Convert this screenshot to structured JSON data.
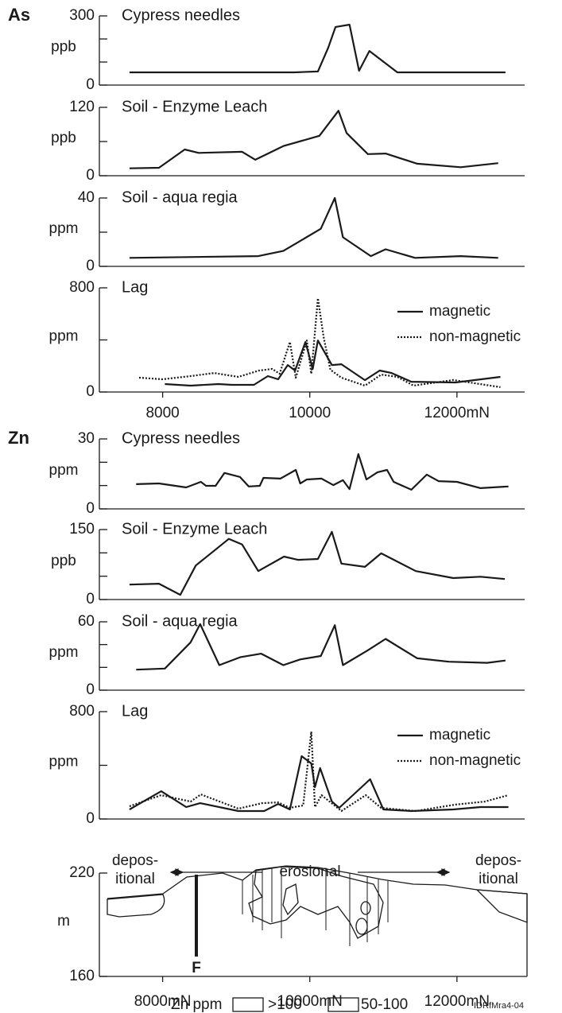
{
  "chart_data": [
    {
      "type": "line",
      "panel_label": "As",
      "title": "Cypress needles",
      "ylabel": "ppb",
      "color": "#1a1a1a",
      "xlim": [
        7140,
        12920
      ],
      "ylim": [
        0,
        300
      ],
      "yticks": [
        0,
        300
      ],
      "yminor": [
        100,
        200
      ],
      "x": [
        7550,
        9780,
        10110,
        10250,
        10350,
        10540,
        10670,
        10810,
        11190,
        12660
      ],
      "values": [
        55,
        55,
        59,
        162,
        252,
        262,
        62,
        148,
        55,
        55
      ]
    },
    {
      "type": "line",
      "title": "Soil - Enzyme Leach",
      "ylabel": "ppb",
      "color": "#1a1a1a",
      "xlim": [
        7140,
        12920
      ],
      "ylim": [
        0,
        120
      ],
      "yticks": [
        0,
        120
      ],
      "yminor": [
        60
      ],
      "x": [
        7550,
        7950,
        8300,
        8490,
        9080,
        9260,
        9640,
        10130,
        10390,
        10500,
        10790,
        11030,
        11460,
        12050,
        12560
      ],
      "values": [
        13,
        14,
        46,
        40,
        42,
        28,
        52,
        70,
        114,
        75,
        38,
        39,
        21,
        15,
        22
      ]
    },
    {
      "type": "line",
      "title": "Soil - aqua regia",
      "ylabel": "ppm",
      "color": "#1a1a1a",
      "xlim": [
        7140,
        12920
      ],
      "ylim": [
        0,
        40
      ],
      "yticks": [
        0,
        40
      ],
      "yminor": [
        20
      ],
      "x": [
        7550,
        9300,
        9640,
        10150,
        10340,
        10450,
        10830,
        11030,
        11430,
        12050,
        12560
      ],
      "values": [
        5,
        6,
        9,
        22,
        40,
        17,
        6,
        10,
        5,
        6,
        5
      ]
    },
    {
      "type": "line",
      "title": "Lag",
      "ylabel": "ppm",
      "xlim": [
        7140,
        12920
      ],
      "ylim": [
        0,
        800
      ],
      "yticks": [
        0,
        800
      ],
      "yminor": [
        400
      ],
      "xticks": [
        8000,
        10000,
        {
          "value": 12000,
          "label": "12000mN"
        }
      ],
      "series": [
        {
          "name": "magnetic",
          "color": "#1a1a1a",
          "dash": "solid",
          "x": [
            8030,
            8380,
            8760,
            8940,
            9240,
            9430,
            9570,
            9700,
            9800,
            9940,
            10040,
            10110,
            10300,
            10430,
            10750,
            10950,
            11110,
            11380,
            11980,
            12590
          ],
          "values": [
            61,
            49,
            61,
            55,
            55,
            122,
            98,
            207,
            165,
            384,
            177,
            396,
            207,
            213,
            91,
            165,
            146,
            79,
            73,
            116
          ]
        },
        {
          "name": "non-magnetic",
          "color": "#1a1a1a",
          "dash": "dotted",
          "x": [
            7680,
            8000,
            8380,
            8700,
            9030,
            9310,
            9490,
            9590,
            9730,
            9810,
            9960,
            10020,
            10110,
            10190,
            10280,
            10430,
            10750,
            10970,
            11190,
            11410,
            11950,
            12590
          ],
          "values": [
            110,
            98,
            122,
            146,
            116,
            165,
            177,
            140,
            384,
            110,
            396,
            140,
            720,
            415,
            171,
            110,
            49,
            134,
            116,
            49,
            92,
            37
          ]
        }
      ]
    },
    {
      "type": "line",
      "panel_label": "Zn",
      "title": "Cypress needles",
      "ylabel": "ppm",
      "color": "#1a1a1a",
      "xlim": [
        7140,
        12920
      ],
      "ylim": [
        0,
        30
      ],
      "yticks": [
        0,
        30
      ],
      "yminor": [
        10,
        20
      ],
      "x": [
        7640,
        7950,
        8320,
        8520,
        8590,
        8720,
        8840,
        9050,
        9170,
        9320,
        9370,
        9600,
        9810,
        9870,
        9960,
        10160,
        10320,
        10450,
        10540,
        10660,
        10770,
        10920,
        11050,
        11140,
        11380,
        11590,
        11750,
        12000,
        12320,
        12700
      ],
      "values": [
        10.6,
        10.9,
        9.2,
        11.6,
        9.9,
        9.9,
        15.4,
        13.7,
        9.6,
        9.9,
        13.3,
        13,
        16.7,
        10.9,
        12.6,
        13,
        10.2,
        12.3,
        8.5,
        23.5,
        12.6,
        15.7,
        16.7,
        11.6,
        8.2,
        14.7,
        11.9,
        11.6,
        8.9,
        9.6
      ]
    },
    {
      "type": "line",
      "title": "Soil - Enzyme Leach",
      "ylabel": "ppb",
      "color": "#1a1a1a",
      "xlim": [
        7140,
        12920
      ],
      "ylim": [
        0,
        150
      ],
      "yticks": [
        0,
        150
      ],
      "yminor": [
        50,
        100
      ],
      "x": [
        7550,
        7950,
        8240,
        8450,
        8900,
        9080,
        9300,
        9650,
        9840,
        10110,
        10300,
        10430,
        10750,
        10970,
        11440,
        11950,
        12320,
        12650
      ],
      "values": [
        32,
        34,
        10,
        73,
        130,
        118,
        61,
        92,
        85,
        87,
        145,
        77,
        70,
        99,
        61,
        46,
        49,
        44
      ]
    },
    {
      "type": "line",
      "title": "Soil - aqua regia",
      "ylabel": "ppm",
      "color": "#1a1a1a",
      "xlim": [
        7140,
        12920
      ],
      "ylim": [
        0,
        60
      ],
      "yticks": [
        0,
        60
      ],
      "yminor": [
        20,
        40
      ],
      "x": [
        7640,
        8030,
        8380,
        8510,
        8770,
        9060,
        9340,
        9640,
        9870,
        10150,
        10340,
        10450,
        10790,
        11030,
        11460,
        11890,
        12410,
        12660
      ],
      "values": [
        18,
        19,
        42,
        58,
        22,
        29,
        32,
        22,
        27,
        30,
        57,
        22,
        35,
        45,
        28,
        25,
        24,
        26
      ]
    },
    {
      "type": "line",
      "title": "Lag",
      "ylabel": "ppm",
      "xlim": [
        7140,
        12920
      ],
      "ylim": [
        0,
        800
      ],
      "yticks": [
        0,
        800
      ],
      "yminor": [
        400
      ],
      "series": [
        {
          "name": "magnetic",
          "color": "#1a1a1a",
          "dash": "solid",
          "x": [
            7550,
            7980,
            8320,
            8510,
            9030,
            9380,
            9570,
            9730,
            9890,
            10020,
            10070,
            10140,
            10300,
            10400,
            10820,
            11000,
            11380,
            11950,
            12320,
            12700
          ],
          "values": [
            71,
            207,
            89,
            118,
            59,
            59,
            112,
            71,
            468,
            414,
            237,
            379,
            130,
            83,
            296,
            71,
            59,
            71,
            89,
            89
          ]
        },
        {
          "name": "non-magnetic",
          "color": "#1a1a1a",
          "dash": "dotted",
          "x": [
            7550,
            7980,
            8380,
            8520,
            9030,
            9350,
            9570,
            9730,
            9910,
            10020,
            10070,
            10160,
            10430,
            10760,
            10970,
            11440,
            11980,
            12380,
            12700
          ],
          "values": [
            95,
            178,
            130,
            183,
            77,
            118,
            124,
            83,
            101,
            651,
            89,
            178,
            59,
            178,
            83,
            59,
            107,
            130,
            178
          ]
        }
      ]
    },
    {
      "type": "section",
      "ylabel": "m",
      "xlim": [
        7140,
        12920
      ],
      "ylim": [
        160,
        220
      ],
      "yticks": [
        160,
        220
      ],
      "xticks": [
        {
          "value": 8000,
          "label": "8000mN"
        },
        {
          "value": 10000,
          "label": "10000mN"
        },
        {
          "value": 12000,
          "label": "12000mN"
        }
      ],
      "annotations": {
        "left": [
          "depos-",
          "itional"
        ],
        "middle": "erosional",
        "right": [
          "depos-",
          "itional"
        ],
        "fault": "F"
      },
      "legend": {
        "title": "Zn ppm",
        "items": [
          ">100",
          "50-100"
        ]
      },
      "figure_id": "IDRfMra4-04"
    }
  ]
}
